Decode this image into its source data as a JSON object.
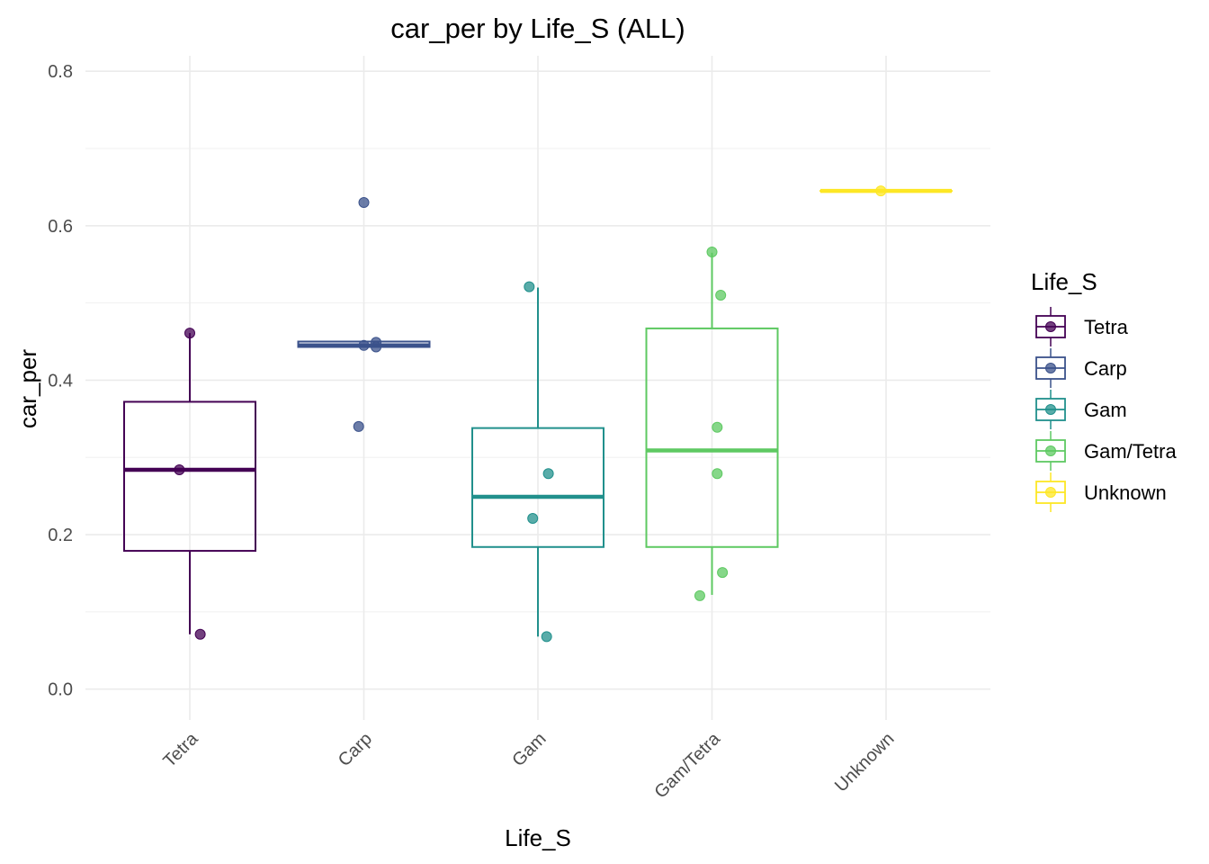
{
  "chart_data": {
    "type": "boxplot",
    "title": "car_per by Life_S (ALL)",
    "xlabel": "Life_S",
    "ylabel": "car_per",
    "ylim": [
      -0.04,
      0.82
    ],
    "yticks": [
      "0.0",
      "0.2",
      "0.4",
      "0.6",
      "0.8"
    ],
    "ytick_values": [
      0.0,
      0.2,
      0.4,
      0.6,
      0.8
    ],
    "grid": true,
    "legend": {
      "title": "Life_S",
      "placement": "right"
    },
    "categories": [
      "Tetra",
      "Carp",
      "Gam",
      "Gam/Tetra",
      "Unknown"
    ],
    "colors": [
      "#440154",
      "#3b528b",
      "#21908c",
      "#5ec962",
      "#fde725"
    ],
    "boxes": [
      {
        "name": "Tetra",
        "q1": 0.179,
        "median": 0.284,
        "q3": 0.372,
        "whisker_low": 0.071,
        "whisker_high": 0.461
      },
      {
        "name": "Carp",
        "q1": 0.443,
        "median": 0.445,
        "q3": 0.45,
        "whisker_low": 0.443,
        "whisker_high": 0.45
      },
      {
        "name": "Gam",
        "q1": 0.184,
        "median": 0.249,
        "q3": 0.338,
        "whisker_low": 0.068,
        "whisker_high": 0.52
      },
      {
        "name": "Gam/Tetra",
        "q1": 0.184,
        "median": 0.309,
        "q3": 0.467,
        "whisker_low": 0.122,
        "whisker_high": 0.565
      },
      {
        "name": "Unknown",
        "q1": 0.645,
        "median": 0.645,
        "q3": 0.645,
        "whisker_low": 0.645,
        "whisker_high": 0.645
      }
    ],
    "points": [
      {
        "category": "Tetra",
        "jitter": 0.0,
        "y": 0.461
      },
      {
        "category": "Tetra",
        "jitter": -0.06,
        "y": 0.284
      },
      {
        "category": "Tetra",
        "jitter": 0.06,
        "y": 0.071
      },
      {
        "category": "Carp",
        "jitter": 0.0,
        "y": 0.63
      },
      {
        "category": "Carp",
        "jitter": 0.07,
        "y": 0.449
      },
      {
        "category": "Carp",
        "jitter": 0.0,
        "y": 0.445
      },
      {
        "category": "Carp",
        "jitter": 0.07,
        "y": 0.443
      },
      {
        "category": "Carp",
        "jitter": -0.03,
        "y": 0.34
      },
      {
        "category": "Gam",
        "jitter": -0.05,
        "y": 0.521
      },
      {
        "category": "Gam",
        "jitter": 0.06,
        "y": 0.279
      },
      {
        "category": "Gam",
        "jitter": -0.03,
        "y": 0.221
      },
      {
        "category": "Gam",
        "jitter": 0.05,
        "y": 0.068
      },
      {
        "category": "Gam/Tetra",
        "jitter": 0.0,
        "y": 0.566
      },
      {
        "category": "Gam/Tetra",
        "jitter": 0.05,
        "y": 0.51
      },
      {
        "category": "Gam/Tetra",
        "jitter": 0.03,
        "y": 0.339
      },
      {
        "category": "Gam/Tetra",
        "jitter": 0.03,
        "y": 0.279
      },
      {
        "category": "Gam/Tetra",
        "jitter": 0.06,
        "y": 0.151
      },
      {
        "category": "Gam/Tetra",
        "jitter": -0.07,
        "y": 0.121
      },
      {
        "category": "Unknown",
        "jitter": -0.03,
        "y": 0.645
      }
    ]
  }
}
